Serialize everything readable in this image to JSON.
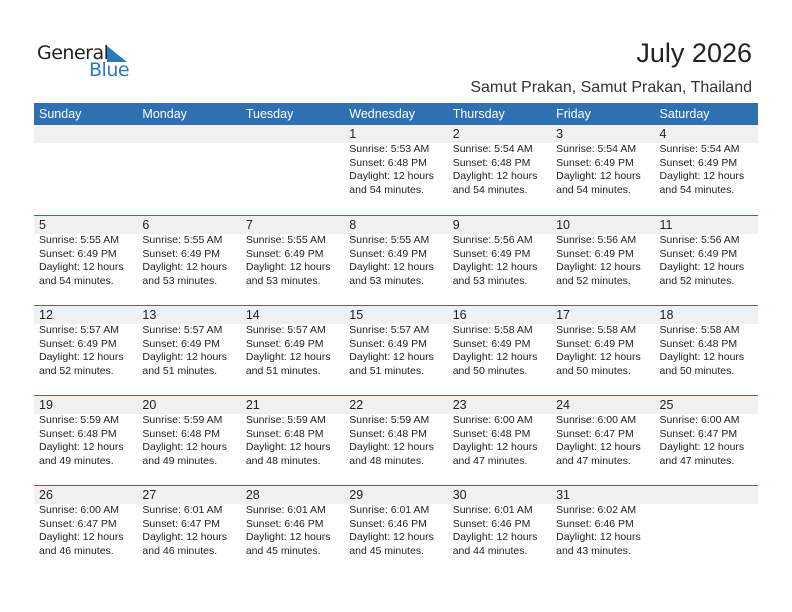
{
  "logo": {
    "text1": "General",
    "text2": "Blue"
  },
  "title": "July 2026",
  "location": "Samut Prakan, Samut Prakan, Thailand",
  "days": [
    "Sunday",
    "Monday",
    "Tuesday",
    "Wednesday",
    "Thursday",
    "Friday",
    "Saturday"
  ],
  "weeks": [
    [
      null,
      null,
      null,
      {
        "day": "1",
        "sunrise": "Sunrise: 5:53 AM",
        "sunset": "Sunset: 6:48 PM",
        "daylight1": "Daylight: 12 hours",
        "daylight2": "and 54 minutes."
      },
      {
        "day": "2",
        "sunrise": "Sunrise: 5:54 AM",
        "sunset": "Sunset: 6:48 PM",
        "daylight1": "Daylight: 12 hours",
        "daylight2": "and 54 minutes."
      },
      {
        "day": "3",
        "sunrise": "Sunrise: 5:54 AM",
        "sunset": "Sunset: 6:49 PM",
        "daylight1": "Daylight: 12 hours",
        "daylight2": "and 54 minutes."
      },
      {
        "day": "4",
        "sunrise": "Sunrise: 5:54 AM",
        "sunset": "Sunset: 6:49 PM",
        "daylight1": "Daylight: 12 hours",
        "daylight2": "and 54 minutes."
      }
    ],
    [
      {
        "day": "5",
        "sunrise": "Sunrise: 5:55 AM",
        "sunset": "Sunset: 6:49 PM",
        "daylight1": "Daylight: 12 hours",
        "daylight2": "and 54 minutes."
      },
      {
        "day": "6",
        "sunrise": "Sunrise: 5:55 AM",
        "sunset": "Sunset: 6:49 PM",
        "daylight1": "Daylight: 12 hours",
        "daylight2": "and 53 minutes."
      },
      {
        "day": "7",
        "sunrise": "Sunrise: 5:55 AM",
        "sunset": "Sunset: 6:49 PM",
        "daylight1": "Daylight: 12 hours",
        "daylight2": "and 53 minutes."
      },
      {
        "day": "8",
        "sunrise": "Sunrise: 5:55 AM",
        "sunset": "Sunset: 6:49 PM",
        "daylight1": "Daylight: 12 hours",
        "daylight2": "and 53 minutes."
      },
      {
        "day": "9",
        "sunrise": "Sunrise: 5:56 AM",
        "sunset": "Sunset: 6:49 PM",
        "daylight1": "Daylight: 12 hours",
        "daylight2": "and 53 minutes."
      },
      {
        "day": "10",
        "sunrise": "Sunrise: 5:56 AM",
        "sunset": "Sunset: 6:49 PM",
        "daylight1": "Daylight: 12 hours",
        "daylight2": "and 52 minutes."
      },
      {
        "day": "11",
        "sunrise": "Sunrise: 5:56 AM",
        "sunset": "Sunset: 6:49 PM",
        "daylight1": "Daylight: 12 hours",
        "daylight2": "and 52 minutes."
      }
    ],
    [
      {
        "day": "12",
        "sunrise": "Sunrise: 5:57 AM",
        "sunset": "Sunset: 6:49 PM",
        "daylight1": "Daylight: 12 hours",
        "daylight2": "and 52 minutes."
      },
      {
        "day": "13",
        "sunrise": "Sunrise: 5:57 AM",
        "sunset": "Sunset: 6:49 PM",
        "daylight1": "Daylight: 12 hours",
        "daylight2": "and 51 minutes."
      },
      {
        "day": "14",
        "sunrise": "Sunrise: 5:57 AM",
        "sunset": "Sunset: 6:49 PM",
        "daylight1": "Daylight: 12 hours",
        "daylight2": "and 51 minutes."
      },
      {
        "day": "15",
        "sunrise": "Sunrise: 5:57 AM",
        "sunset": "Sunset: 6:49 PM",
        "daylight1": "Daylight: 12 hours",
        "daylight2": "and 51 minutes."
      },
      {
        "day": "16",
        "sunrise": "Sunrise: 5:58 AM",
        "sunset": "Sunset: 6:49 PM",
        "daylight1": "Daylight: 12 hours",
        "daylight2": "and 50 minutes."
      },
      {
        "day": "17",
        "sunrise": "Sunrise: 5:58 AM",
        "sunset": "Sunset: 6:49 PM",
        "daylight1": "Daylight: 12 hours",
        "daylight2": "and 50 minutes."
      },
      {
        "day": "18",
        "sunrise": "Sunrise: 5:58 AM",
        "sunset": "Sunset: 6:48 PM",
        "daylight1": "Daylight: 12 hours",
        "daylight2": "and 50 minutes."
      }
    ],
    [
      {
        "day": "19",
        "sunrise": "Sunrise: 5:59 AM",
        "sunset": "Sunset: 6:48 PM",
        "daylight1": "Daylight: 12 hours",
        "daylight2": "and 49 minutes."
      },
      {
        "day": "20",
        "sunrise": "Sunrise: 5:59 AM",
        "sunset": "Sunset: 6:48 PM",
        "daylight1": "Daylight: 12 hours",
        "daylight2": "and 49 minutes."
      },
      {
        "day": "21",
        "sunrise": "Sunrise: 5:59 AM",
        "sunset": "Sunset: 6:48 PM",
        "daylight1": "Daylight: 12 hours",
        "daylight2": "and 48 minutes."
      },
      {
        "day": "22",
        "sunrise": "Sunrise: 5:59 AM",
        "sunset": "Sunset: 6:48 PM",
        "daylight1": "Daylight: 12 hours",
        "daylight2": "and 48 minutes."
      },
      {
        "day": "23",
        "sunrise": "Sunrise: 6:00 AM",
        "sunset": "Sunset: 6:48 PM",
        "daylight1": "Daylight: 12 hours",
        "daylight2": "and 47 minutes."
      },
      {
        "day": "24",
        "sunrise": "Sunrise: 6:00 AM",
        "sunset": "Sunset: 6:47 PM",
        "daylight1": "Daylight: 12 hours",
        "daylight2": "and 47 minutes."
      },
      {
        "day": "25",
        "sunrise": "Sunrise: 6:00 AM",
        "sunset": "Sunset: 6:47 PM",
        "daylight1": "Daylight: 12 hours",
        "daylight2": "and 47 minutes."
      }
    ],
    [
      {
        "day": "26",
        "sunrise": "Sunrise: 6:00 AM",
        "sunset": "Sunset: 6:47 PM",
        "daylight1": "Daylight: 12 hours",
        "daylight2": "and 46 minutes."
      },
      {
        "day": "27",
        "sunrise": "Sunrise: 6:01 AM",
        "sunset": "Sunset: 6:47 PM",
        "daylight1": "Daylight: 12 hours",
        "daylight2": "and 46 minutes."
      },
      {
        "day": "28",
        "sunrise": "Sunrise: 6:01 AM",
        "sunset": "Sunset: 6:46 PM",
        "daylight1": "Daylight: 12 hours",
        "daylight2": "and 45 minutes."
      },
      {
        "day": "29",
        "sunrise": "Sunrise: 6:01 AM",
        "sunset": "Sunset: 6:46 PM",
        "daylight1": "Daylight: 12 hours",
        "daylight2": "and 45 minutes."
      },
      {
        "day": "30",
        "sunrise": "Sunrise: 6:01 AM",
        "sunset": "Sunset: 6:46 PM",
        "daylight1": "Daylight: 12 hours",
        "daylight2": "and 44 minutes."
      },
      {
        "day": "31",
        "sunrise": "Sunrise: 6:02 AM",
        "sunset": "Sunset: 6:46 PM",
        "daylight1": "Daylight: 12 hours",
        "daylight2": "and 43 minutes."
      },
      null
    ]
  ]
}
